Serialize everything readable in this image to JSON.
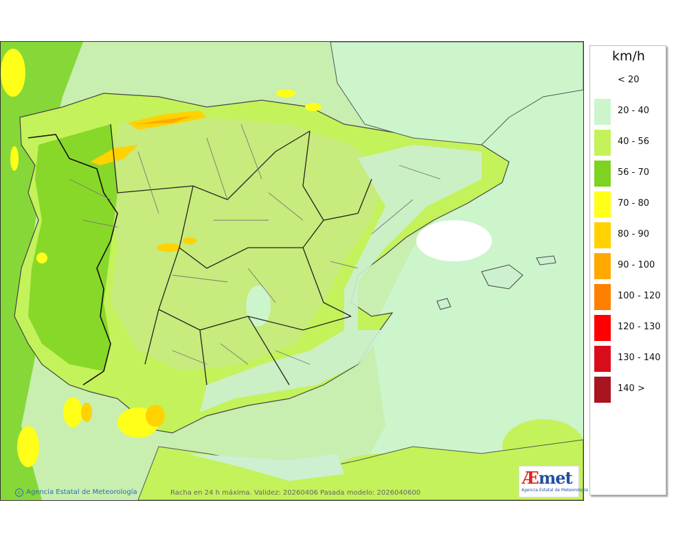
{
  "legend": {
    "unit": "km/h",
    "items": [
      {
        "label": "< 20",
        "color": "#ffffff"
      },
      {
        "label": "20 - 40",
        "color": "#ccf5cc"
      },
      {
        "label": "40 - 56",
        "color": "#c4f25a"
      },
      {
        "label": "56 - 70",
        "color": "#7ed321"
      },
      {
        "label": "70 - 80",
        "color": "#ffff1a"
      },
      {
        "label": "80 - 90",
        "color": "#ffd200"
      },
      {
        "label": "90 - 100",
        "color": "#ffa800"
      },
      {
        "label": "100 - 120",
        "color": "#ff8000"
      },
      {
        "label": "120 - 130",
        "color": "#ff0000"
      },
      {
        "label": "130 - 140",
        "color": "#d90d1a"
      },
      {
        "label": "140 >",
        "color": "#a8141f"
      }
    ]
  },
  "footer": {
    "credit": "Agencia Estatal de Meteorología",
    "caption": "Racha en 24 h máxima. Validez: 20260406 Pasada modelo: 2026040600"
  },
  "logo": {
    "word_a": "Æ",
    "word_met": "met",
    "subtitle": "Agencia Estatal de Meteorología"
  },
  "map": {
    "sea_color": "#ccf5cc",
    "land_color": "#c4f25a",
    "strong_color": "#7ed321",
    "border_color": "#333333"
  }
}
